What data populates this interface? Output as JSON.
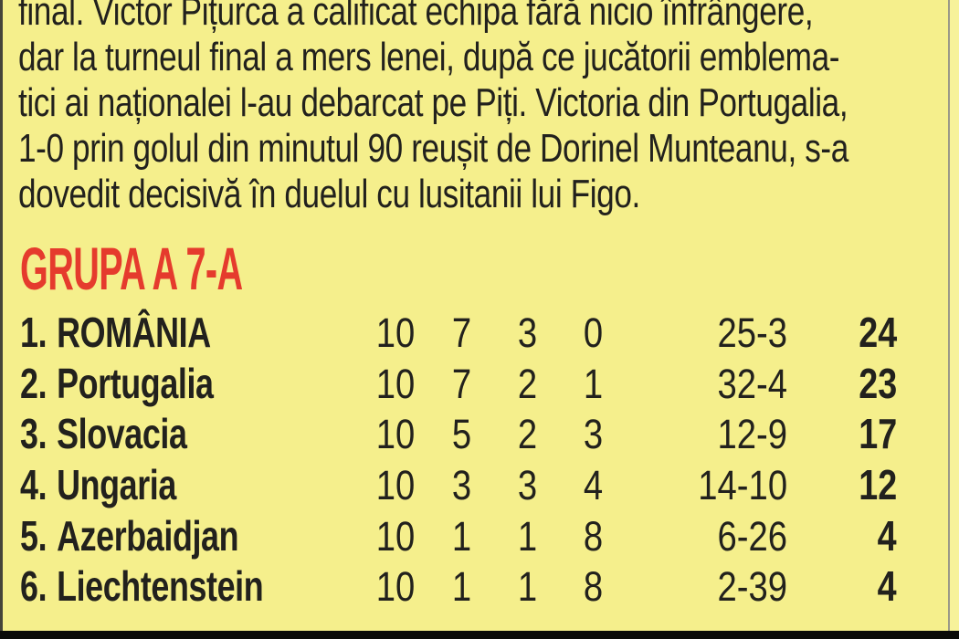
{
  "page": {
    "background_color": "#f5ef8c",
    "text_color": "#22211d",
    "headline_color": "#e53b2d"
  },
  "article": {
    "lines": [
      "final. Victor Pițurca a calificat echipa fără nicio înfrângere,",
      "dar la turneul final a mers lenei, după ce jucătorii emblema-",
      "tici ai naționalei l-au debarcat pe Piți. Victoria din Portugalia,",
      "1-0 prin golul din minutul 90 reușit de Dorinel Munteanu, s-a",
      "dovedit decisivă în duelul cu lusitanii lui Figo."
    ]
  },
  "standings": {
    "title": "GRUPA A 7-A",
    "rows": [
      {
        "rank": "1.",
        "team": "ROMÂNIA",
        "played": "10",
        "won": "7",
        "drawn": "3",
        "lost": "0",
        "goals": "25-3",
        "points": "24"
      },
      {
        "rank": "2.",
        "team": "Portugalia",
        "played": "10",
        "won": "7",
        "drawn": "2",
        "lost": "1",
        "goals": "32-4",
        "points": "23"
      },
      {
        "rank": "3.",
        "team": "Slovacia",
        "played": "10",
        "won": "5",
        "drawn": "2",
        "lost": "3",
        "goals": "12-9",
        "points": "17"
      },
      {
        "rank": "4.",
        "team": "Ungaria",
        "played": "10",
        "won": "3",
        "drawn": "3",
        "lost": "4",
        "goals": "14-10",
        "points": "12"
      },
      {
        "rank": "5.",
        "team": "Azerbaidjan",
        "played": "10",
        "won": "1",
        "drawn": "1",
        "lost": "8",
        "goals": "6-26",
        "points": "4"
      },
      {
        "rank": "6.",
        "team": "Liechtenstein",
        "played": "10",
        "won": "1",
        "drawn": "1",
        "lost": "8",
        "goals": "2-39",
        "points": "4"
      }
    ]
  }
}
